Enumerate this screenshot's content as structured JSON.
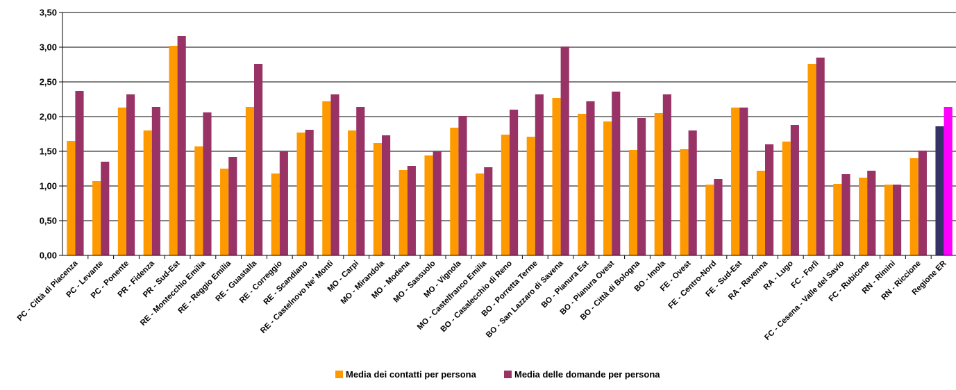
{
  "chart_data": {
    "type": "bar",
    "ylim": [
      0,
      3.5
    ],
    "y_ticks": [
      "0,00",
      "0,50",
      "1,00",
      "1,50",
      "2,00",
      "2,50",
      "3,00",
      "3,50"
    ],
    "grid": "horizontal",
    "legend_position": "bottom",
    "categories": [
      "PC - Città di Piacenza",
      "PC - Levante",
      "PC - Ponente",
      "PR - Fidenza",
      "PR - Sud-Est",
      "RE - Montecchio Emilia",
      "RE - Reggio Emilia",
      "RE - Guastalla",
      "RE - Correggio",
      "RE - Scandiano",
      "RE - Castelnovo Ne' Monti",
      "MO - Carpi",
      "MO - Mirandola",
      "MO - Modena",
      "MO - Sassuolo",
      "MO - Vignola",
      "MO - Castelfranco Emilia",
      "BO - Casalecchio di Reno",
      "BO - Porretta Terme",
      "BO - San Lazzaro di Savena",
      "BO - Pianura Est",
      "BO - Pianura Ovest",
      "BO - Città di Bologna",
      "BO - Imola",
      "FE - Ovest",
      "FE - Centro-Nord",
      "FE - Sud-Est",
      "RA - Ravenna",
      "RA - Lugo",
      "FC - Forlì",
      "FC - Cesena - Valle del Savio",
      "FC - Rubicone",
      "RN - Rimini",
      "RN - Riccione",
      "Regione ER"
    ],
    "series": [
      {
        "name": "Media dei contatti per persona",
        "color": "#FF9900",
        "values": [
          1.65,
          1.07,
          2.13,
          1.8,
          3.02,
          1.57,
          1.25,
          2.14,
          1.18,
          1.77,
          2.22,
          1.8,
          1.62,
          1.23,
          1.44,
          1.84,
          1.18,
          1.74,
          1.71,
          2.27,
          2.04,
          1.93,
          1.52,
          2.05,
          1.53,
          1.02,
          2.13,
          1.22,
          1.64,
          2.76,
          1.03,
          1.12,
          1.02,
          1.4,
          1.86
        ]
      },
      {
        "name": "Media delle domande per persona",
        "color": "#993366",
        "values": [
          2.37,
          1.35,
          2.32,
          2.14,
          3.16,
          2.06,
          1.42,
          2.76,
          1.5,
          1.81,
          2.32,
          2.14,
          1.73,
          1.29,
          1.5,
          2.01,
          1.27,
          2.1,
          2.32,
          3.01,
          2.22,
          2.36,
          1.98,
          2.32,
          1.8,
          1.1,
          2.13,
          1.6,
          1.88,
          2.85,
          1.17,
          1.22,
          1.02,
          1.51,
          2.14
        ]
      }
    ],
    "highlight_colors": {
      "Regione ER": [
        "#333366",
        "#FF00FF"
      ]
    }
  }
}
